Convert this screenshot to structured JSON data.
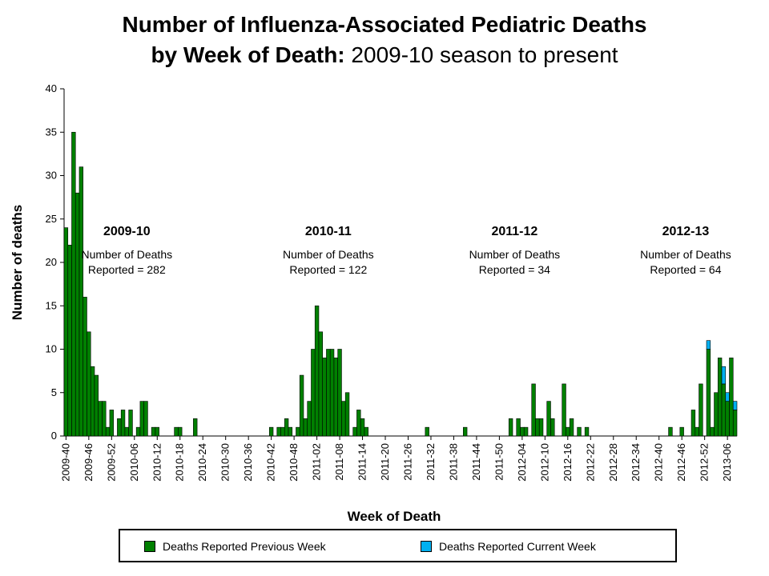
{
  "title_bold_1": "Number of Influenza-Associated Pediatric Deaths",
  "title_bold_2": "by Week of Death:",
  "title_regular_2": " 2009-10 season to present",
  "chart_data": {
    "type": "bar",
    "stacked": true,
    "xlabel": "Week of Death",
    "ylabel": "Number of deaths",
    "ylim": [
      0,
      40
    ],
    "yticks": [
      0,
      5,
      10,
      15,
      20,
      25,
      30,
      35,
      40
    ],
    "week_range": {
      "first": "2009-40",
      "last": "2013-06"
    },
    "tick_labels": [
      "2009-40",
      "2009-46",
      "2009-52",
      "2010-06",
      "2010-12",
      "2010-18",
      "2010-24",
      "2010-30",
      "2010-36",
      "2010-42",
      "2010-48",
      "2011-02",
      "2011-08",
      "2011-14",
      "2011-20",
      "2011-26",
      "2011-32",
      "2011-38",
      "2011-44",
      "2011-50",
      "2012-04",
      "2012-10",
      "2012-16",
      "2012-22",
      "2012-28",
      "2012-34",
      "2012-40",
      "2012-46",
      "2012-52",
      "2013-06"
    ],
    "series": [
      {
        "name": "Deaths Reported Previous Week",
        "color": "#008000",
        "values": [
          24,
          22,
          35,
          28,
          31,
          16,
          12,
          8,
          7,
          4,
          4,
          1,
          3,
          0,
          2,
          3,
          1,
          3,
          0,
          1,
          4,
          4,
          0,
          1,
          1,
          0,
          0,
          0,
          0,
          1,
          1,
          0,
          0,
          0,
          2,
          0,
          0,
          0,
          0,
          0,
          0,
          0,
          0,
          0,
          0,
          0,
          0,
          0,
          0,
          0,
          0,
          0,
          0,
          0,
          1,
          0,
          1,
          1,
          2,
          1,
          0,
          1,
          7,
          2,
          4,
          10,
          15,
          12,
          9,
          10,
          10,
          9,
          10,
          4,
          5,
          0,
          1,
          3,
          2,
          1,
          0,
          0,
          0,
          0,
          0,
          0,
          0,
          0,
          0,
          0,
          0,
          0,
          0,
          0,
          0,
          1,
          0,
          0,
          0,
          0,
          0,
          0,
          0,
          0,
          0,
          1,
          0,
          0,
          0,
          0,
          0,
          0,
          0,
          0,
          0,
          0,
          0,
          2,
          0,
          2,
          1,
          1,
          0,
          6,
          2,
          2,
          0,
          4,
          2,
          0,
          0,
          6,
          1,
          2,
          0,
          1,
          0,
          1,
          0,
          0,
          0,
          0,
          0,
          0,
          0,
          0,
          0,
          0,
          0,
          0,
          0,
          0,
          0,
          0,
          0,
          0,
          0,
          0,
          0,
          1,
          0,
          0,
          1,
          0,
          0,
          3,
          1,
          6,
          0,
          10,
          1,
          5,
          9,
          6,
          4,
          9,
          3
        ]
      },
      {
        "name": "Deaths Reported Current Week",
        "color": "#00B0F0",
        "values": [
          0,
          0,
          0,
          0,
          0,
          0,
          0,
          0,
          0,
          0,
          0,
          0,
          0,
          0,
          0,
          0,
          0,
          0,
          0,
          0,
          0,
          0,
          0,
          0,
          0,
          0,
          0,
          0,
          0,
          0,
          0,
          0,
          0,
          0,
          0,
          0,
          0,
          0,
          0,
          0,
          0,
          0,
          0,
          0,
          0,
          0,
          0,
          0,
          0,
          0,
          0,
          0,
          0,
          0,
          0,
          0,
          0,
          0,
          0,
          0,
          0,
          0,
          0,
          0,
          0,
          0,
          0,
          0,
          0,
          0,
          0,
          0,
          0,
          0,
          0,
          0,
          0,
          0,
          0,
          0,
          0,
          0,
          0,
          0,
          0,
          0,
          0,
          0,
          0,
          0,
          0,
          0,
          0,
          0,
          0,
          0,
          0,
          0,
          0,
          0,
          0,
          0,
          0,
          0,
          0,
          0,
          0,
          0,
          0,
          0,
          0,
          0,
          0,
          0,
          0,
          0,
          0,
          0,
          0,
          0,
          0,
          0,
          0,
          0,
          0,
          0,
          0,
          0,
          0,
          0,
          0,
          0,
          0,
          0,
          0,
          0,
          0,
          0,
          0,
          0,
          0,
          0,
          0,
          0,
          0,
          0,
          0,
          0,
          0,
          0,
          0,
          0,
          0,
          0,
          0,
          0,
          0,
          0,
          0,
          0,
          0,
          0,
          0,
          0,
          0,
          0,
          0,
          0,
          0,
          1,
          0,
          0,
          0,
          2,
          1,
          0,
          1,
          0
        ]
      }
    ],
    "seasons": [
      {
        "label": "2009-10",
        "line1": "Number of Deaths",
        "line2": "Reported = 282",
        "center_week": 16
      },
      {
        "label": "2010-11",
        "line1": "Number of Deaths",
        "line2": "Reported = 122",
        "center_week": 69
      },
      {
        "label": "2011-12",
        "line1": "Number of Deaths",
        "line2": "Reported = 34",
        "center_week": 118
      },
      {
        "label": "2012-13",
        "line1": "Number of Deaths",
        "line2": "Reported = 64",
        "center_week": 163
      }
    ]
  }
}
